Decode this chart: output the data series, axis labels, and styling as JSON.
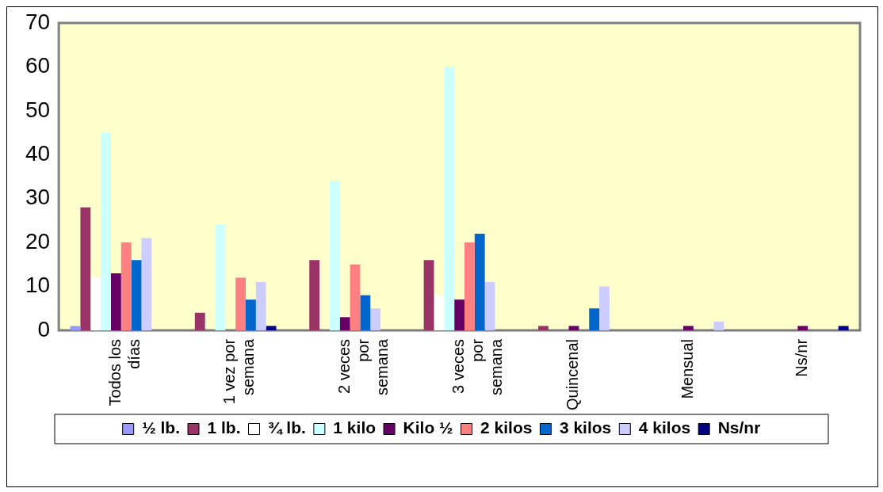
{
  "chart_data": {
    "type": "bar",
    "categories": [
      "Todos los días",
      "1 vez por semana",
      "2 veces por semana",
      "3 veces por semana",
      "Quincenal",
      "Mensual",
      "Ns/nr"
    ],
    "series": [
      {
        "name": "½ lb.",
        "color": "#9999ff",
        "values": [
          1,
          0,
          0,
          0,
          0,
          0,
          0
        ]
      },
      {
        "name": "1 lb.",
        "color": "#993366",
        "values": [
          28,
          4,
          16,
          16,
          1,
          0,
          0
        ]
      },
      {
        "name": "¾ lb.",
        "color": "#ffffff",
        "values": [
          12,
          0,
          0,
          8,
          0,
          0,
          0
        ]
      },
      {
        "name": "1 kilo",
        "color": "#ccffff",
        "values": [
          45,
          24,
          34,
          60,
          0,
          0,
          0
        ]
      },
      {
        "name": "Kilo ½",
        "color": "#660066",
        "values": [
          13,
          0,
          3,
          7,
          1,
          1,
          1
        ]
      },
      {
        "name": "2 kilos",
        "color": "#ff8080",
        "values": [
          20,
          12,
          15,
          20,
          0,
          0,
          0
        ]
      },
      {
        "name": "3 kilos",
        "color": "#0066cc",
        "values": [
          16,
          7,
          8,
          22,
          5,
          0,
          0
        ]
      },
      {
        "name": "4 kilos",
        "color": "#ccccff",
        "values": [
          21,
          11,
          5,
          11,
          10,
          2,
          0
        ]
      },
      {
        "name": "Ns/nr",
        "color": "#000080",
        "values": [
          0,
          1,
          0,
          0,
          0,
          0,
          1
        ]
      }
    ],
    "ylim": [
      0,
      70
    ],
    "yticks": [
      0,
      10,
      20,
      30,
      40,
      50,
      60,
      70
    ],
    "grid": false,
    "legend": "bottom"
  }
}
